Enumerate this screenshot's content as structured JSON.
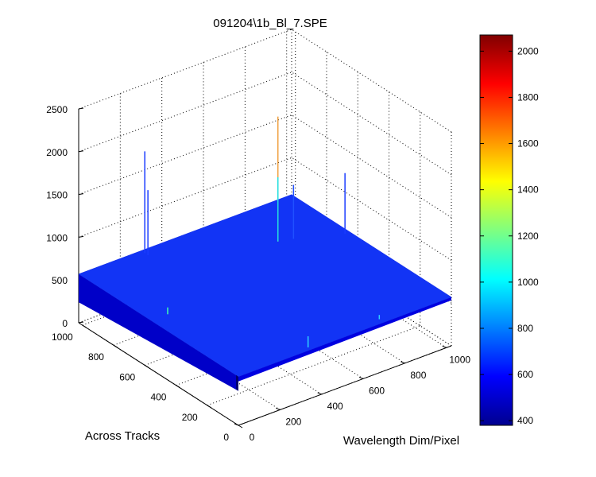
{
  "chart_data": {
    "type": "surface",
    "title": "091204\\1b_Bl_7.SPE",
    "xlabel": "Wavelength Dim/Pixel",
    "ylabel": "Across Tracks",
    "zlabel": "",
    "x_ticks": [
      "0",
      "200",
      "400",
      "600",
      "800",
      "1000"
    ],
    "y_ticks": [
      "0",
      "200",
      "400",
      "600",
      "800",
      "1000"
    ],
    "z_ticks": [
      "0",
      "500",
      "1000",
      "1500",
      "2000",
      "2500"
    ],
    "xlim": [
      0,
      1024
    ],
    "ylim": [
      0,
      1024
    ],
    "zlim": [
      0,
      2500
    ],
    "grid": true,
    "colormap": "jet",
    "clim": [
      380,
      2070
    ],
    "colorbar_ticks": [
      "400",
      "600",
      "800",
      "1000",
      "1200",
      "1400",
      "1600",
      "1800",
      "2000"
    ],
    "colorbar_values": [
      400,
      600,
      800,
      1000,
      1200,
      1400,
      1600,
      1800,
      2000
    ],
    "baseline_level": 570,
    "spikes": [
      {
        "x": 300,
        "y": 1000,
        "z": 1760,
        "color": "#1a3cff"
      },
      {
        "x": 300,
        "y": 980,
        "z": 1330,
        "color": "#1a3cff"
      },
      {
        "x": 1000,
        "y": 650,
        "z": 1280,
        "color": "#1a3cff"
      },
      {
        "x": 760,
        "y": 760,
        "z": 2030,
        "color": "#f0a040"
      },
      {
        "x": 760,
        "y": 760,
        "z": 1320,
        "color": "#20e0e0"
      },
      {
        "x": 820,
        "y": 740,
        "z": 1200,
        "color": "#2050ff"
      },
      {
        "x": 80,
        "y": 560,
        "z": 650,
        "color": "#40ffb0"
      },
      {
        "x": 350,
        "y": 20,
        "z": 700,
        "color": "#30d0ff"
      },
      {
        "x": 700,
        "y": 30,
        "z": 620,
        "color": "#30d0ff"
      }
    ]
  }
}
